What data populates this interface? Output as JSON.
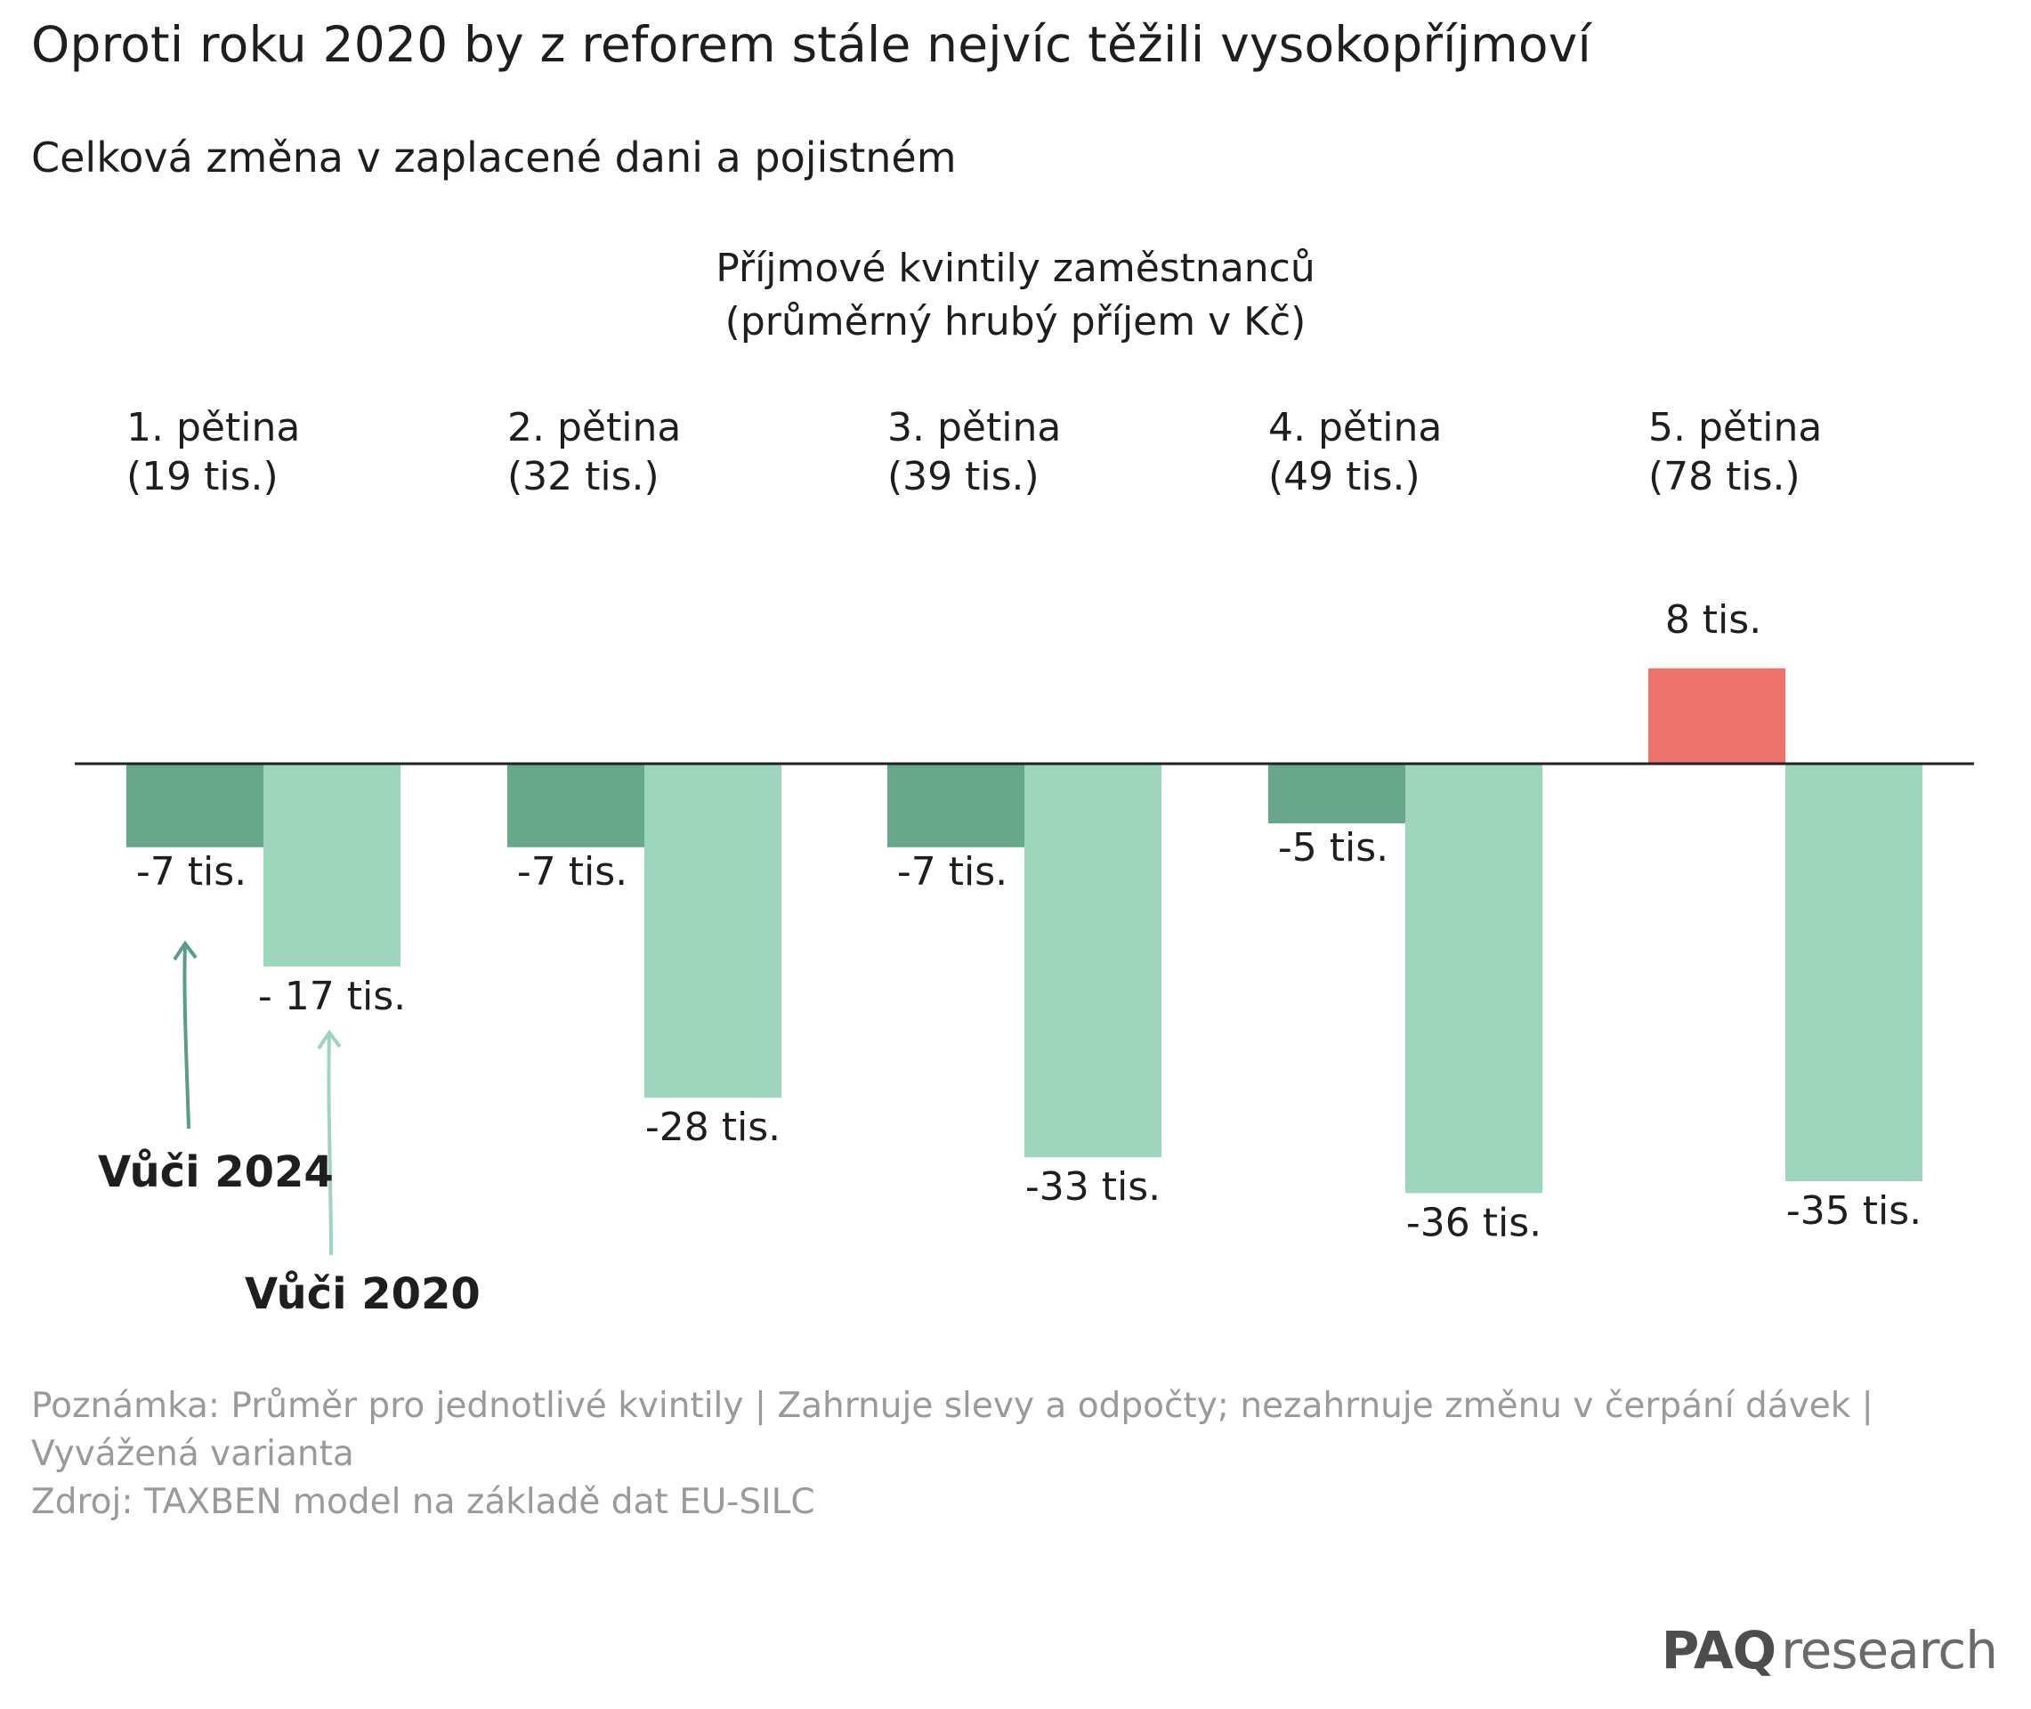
{
  "header": {
    "title": "Oproti roku 2020 by z reforem stále nejvíc těžili vysokopříjmoví",
    "subtitle": "Celková změna v zaplacené dani a pojistném"
  },
  "chart_data": {
    "type": "bar",
    "title": "Příjmové kvintily zaměstnanců",
    "subtitle": "(průměrný hrubý příjem v Kč)",
    "categories": [
      "1. pětina",
      "2. pětina",
      "3. pětina",
      "4. pětina",
      "5. pětina"
    ],
    "category_sublabels": [
      "(19 tis.)",
      "(32 tis.)",
      "(39 tis.)",
      "(49 tis.)",
      "(78 tis.)"
    ],
    "series": [
      {
        "name": "Vůči 2024",
        "values": [
          -7,
          -7,
          -7,
          -5,
          8
        ],
        "data_labels": [
          "-7 tis.",
          "-7 tis.",
          "-7 tis.",
          "-5 tis.",
          "8 tis."
        ]
      },
      {
        "name": "Vůči 2020",
        "values": [
          -17,
          -28,
          -33,
          -36,
          -35
        ],
        "data_labels": [
          "- 17 tis.",
          "-28 tis.",
          "-33 tis.",
          "-36 tis.",
          "-35 tis."
        ]
      }
    ],
    "colors": {
      "v2024_negative": "#67a78b",
      "v2024_positive": "#ed726b",
      "v2020": "#9dd6bc",
      "arrow_2024": "#5a9d82",
      "arrow_2020": "#9dd6bc",
      "baseline": "#222222"
    },
    "ylim": [
      -40,
      12
    ],
    "grid": false,
    "legend": "annotations with arrows under first category"
  },
  "footer": {
    "note_line1": "Poznámka: Průměr pro jednotlivé kvintily | Zahrnuje slevy a odpočty; nezahrnuje změnu v čerpání dávek |",
    "note_line2": "Vyvážená varianta",
    "source": "Zdroj: TAXBEN model na základě dat EU-SILC",
    "brand_bold": "PAQ",
    "brand_light": "research"
  }
}
